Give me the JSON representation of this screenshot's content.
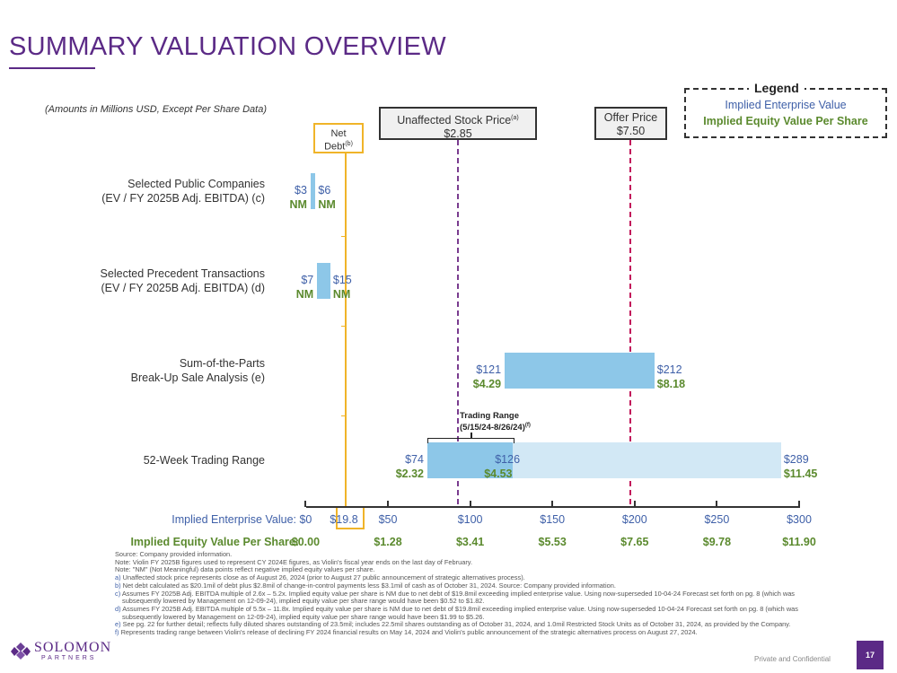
{
  "title": "SUMMARY VALUATION OVERVIEW",
  "subtitle": "(Amounts in Millions USD, Except Per Share Data)",
  "legend": {
    "title": "Legend",
    "ev": "Implied Enterprise Value",
    "eq": "Implied Equity Value Per Share"
  },
  "markers": {
    "net_debt": {
      "line1": "Net",
      "line2": "Debt",
      "sup": "(b)"
    },
    "unaffected": {
      "label": "Unaffected Stock Price",
      "sup": "(a)",
      "value": "$2.85"
    },
    "offer": {
      "label": "Offer Price",
      "value": "$7.50"
    }
  },
  "trading_range": {
    "line1": "Trading Range",
    "line2": "(5/15/24-8/26/24)",
    "sup": "(f)"
  },
  "chart_data": {
    "type": "bar",
    "orientation": "horizontal-range",
    "xlabel": "Implied Enterprise Value:",
    "x2label": "Implied Equity Value Per Share:",
    "xlim": [
      0,
      300
    ],
    "ticks": [
      {
        "ev": "$0",
        "eq": "$0.00",
        "v": 0
      },
      {
        "ev": "$19.8",
        "eq": "",
        "v": 19.8
      },
      {
        "ev": "$50",
        "eq": "$1.28",
        "v": 50
      },
      {
        "ev": "$100",
        "eq": "$3.41",
        "v": 100
      },
      {
        "ev": "$150",
        "eq": "$5.53",
        "v": 150
      },
      {
        "ev": "$200",
        "eq": "$7.65",
        "v": 200
      },
      {
        "ev": "$250",
        "eq": "$9.78",
        "v": 250
      },
      {
        "ev": "$300",
        "eq": "$11.90",
        "v": 300
      }
    ],
    "rows": [
      {
        "label1": "Selected Public Companies",
        "label2": "(EV / FY 2025B Adj. EBITDA) (c)",
        "low": 3,
        "high": 6,
        "low_ev": "$3",
        "high_ev": "$6",
        "low_eq": "NM",
        "high_eq": "NM"
      },
      {
        "label1": "Selected Precedent Transactions",
        "label2": "(EV / FY 2025B Adj. EBITDA) (d)",
        "low": 7,
        "high": 15,
        "low_ev": "$7",
        "high_ev": "$15",
        "low_eq": "NM",
        "high_eq": "NM"
      },
      {
        "label1": "Sum-of-the-Parts",
        "label2": "Break-Up Sale Analysis (e)",
        "low": 121,
        "high": 212,
        "low_ev": "$121",
        "high_ev": "$212",
        "low_eq": "$4.29",
        "high_eq": "$8.18"
      },
      {
        "label1": "52-Week Trading Range",
        "label2": "",
        "low": 74,
        "high": 289,
        "mid": 126,
        "low_ev": "$74",
        "high_ev": "$289",
        "mid_ev": "$126",
        "low_eq": "$2.32",
        "high_eq": "$11.45",
        "mid_eq": "$4.53"
      }
    ],
    "reference_lines": {
      "net_debt_ev": 19.8,
      "unaffected_price": 2.85,
      "offer_price": 7.5
    }
  },
  "footnotes": [
    {
      "l": "",
      "t": "Source: Company provided information."
    },
    {
      "l": "",
      "t": "Note: Violin FY 2025B figures used to represent CY 2024E figures, as Violin's fiscal year ends on the last day of February."
    },
    {
      "l": "",
      "t": "Note: \"NM\" (Not Meaningful) data points reflect negative implied equity values per share."
    },
    {
      "l": "a)",
      "t": " Unaffected stock price represents close as of August 26, 2024 (prior to August 27 public announcement of strategic alternatives process)."
    },
    {
      "l": "b)",
      "t": " Net debt calculated as $20.1mil of debt plus $2.8mil of change-in-control payments less $3.1mil of cash as of October 31, 2024. Source: Company provided information."
    },
    {
      "l": "c)",
      "t": " Assumes FY 2025B Adj. EBITDA multiple of 2.6x – 5.2x. Implied equity value per share is NM due to net debt of $19.8mil exceeding implied enterprise value. Using now-superseded 10-04-24 Forecast set forth on pg. 8 (which was subsequently lowered by Management on 12-09-24), implied equity value per share range would have been $0.52 to $1.82."
    },
    {
      "l": "d)",
      "t": " Assumes FY 2025B Adj. EBITDA multiple of 5.5x – 11.8x. Implied equity value per share is NM due to net debt of $19.8mil exceeding implied enterprise value. Using now-superseded 10-04-24 Forecast set forth on pg. 8 (which was subsequently lowered by Management on 12-09-24), implied equity value per share range would have been $1.99 to $5.26."
    },
    {
      "l": "e)",
      "t": " See pg. 22 for further detail; reflects fully diluted shares outstanding of 23.5mil; includes 22.5mil shares outstanding as of October 31, 2024, and 1.0mil Restricted Stock Units as of October 31, 2024, as provided by the Company."
    },
    {
      "l": "f)",
      "t": " Represents trading range between Violin's release of declining FY 2024 financial results on May 14, 2024 and Violin's public announcement of the strategic alternatives process on August 27, 2024."
    }
  ],
  "footer": {
    "logo_main": "SOLOMON",
    "logo_sub": "PARTNERS",
    "confidential": "Private and Confidential",
    "page": "17"
  }
}
